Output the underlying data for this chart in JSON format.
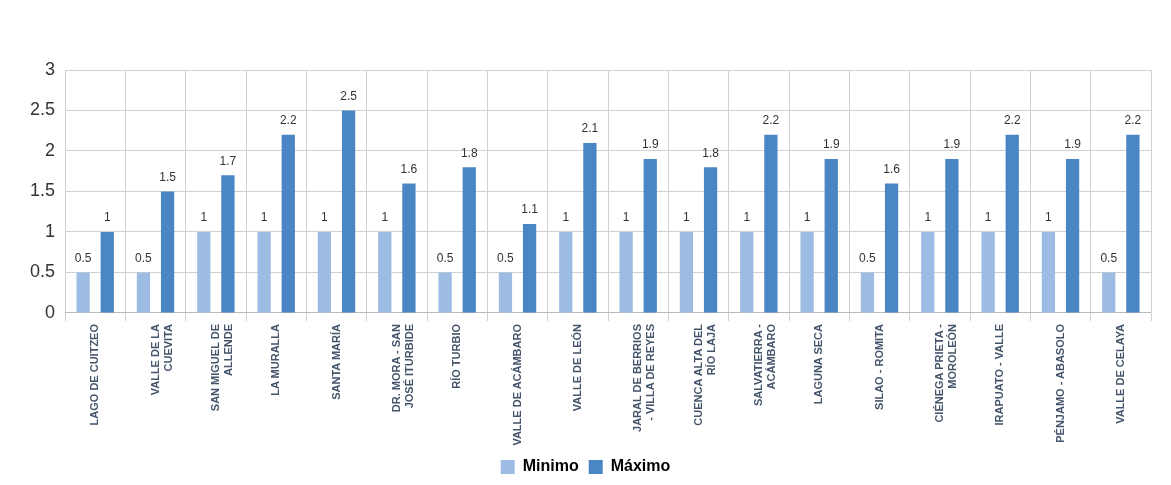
{
  "chart_data": {
    "type": "bar",
    "categories": [
      "LAGO DE CUITZEO",
      "VALLE DE LA CUEVITA",
      "SAN MIGUEL DE ALLENDE",
      "LA MURALLA",
      "SANTA MARÍA",
      "DR. MORA - SAN JOSÉ ITURBIDE",
      "RÍO TURBIO",
      "VALLE DE ACÁMBARO",
      "VALLE DE LEÓN",
      "JARAL DE BERRIOS - VILLA DE REYES",
      "CUENCA ALTA DEL RÍO LAJA",
      "SALVATIERRA - ACÁMBARO",
      "LAGUNA SECA",
      "SILAO - ROMITA",
      "CIÉNEGA PRIETA - MOROLEÓN",
      "IRAPUATO - VALLE",
      "PÉNJAMO - ABASOLO",
      "VALLE DE CELAYA"
    ],
    "series": [
      {
        "name": "Minimo",
        "color": "#9dbce3",
        "values": [
          0.5,
          0.5,
          1,
          1,
          1,
          1,
          0.5,
          0.5,
          1,
          1,
          1,
          1,
          1,
          0.5,
          1,
          1,
          1,
          0.5
        ]
      },
      {
        "name": "Máximo",
        "color": "#4a86c4",
        "values": [
          1,
          1.5,
          1.7,
          2.2,
          2.5,
          1.6,
          1.8,
          1.1,
          2.1,
          1.9,
          1.8,
          2.2,
          1.9,
          1.6,
          1.9,
          2.2,
          1.9,
          2.2
        ]
      }
    ],
    "ylim": [
      0,
      3
    ],
    "yticks": [
      0,
      0.5,
      1,
      1.5,
      2,
      2.5,
      3
    ],
    "grid": true,
    "legend": "bottom",
    "data_labels": true
  }
}
